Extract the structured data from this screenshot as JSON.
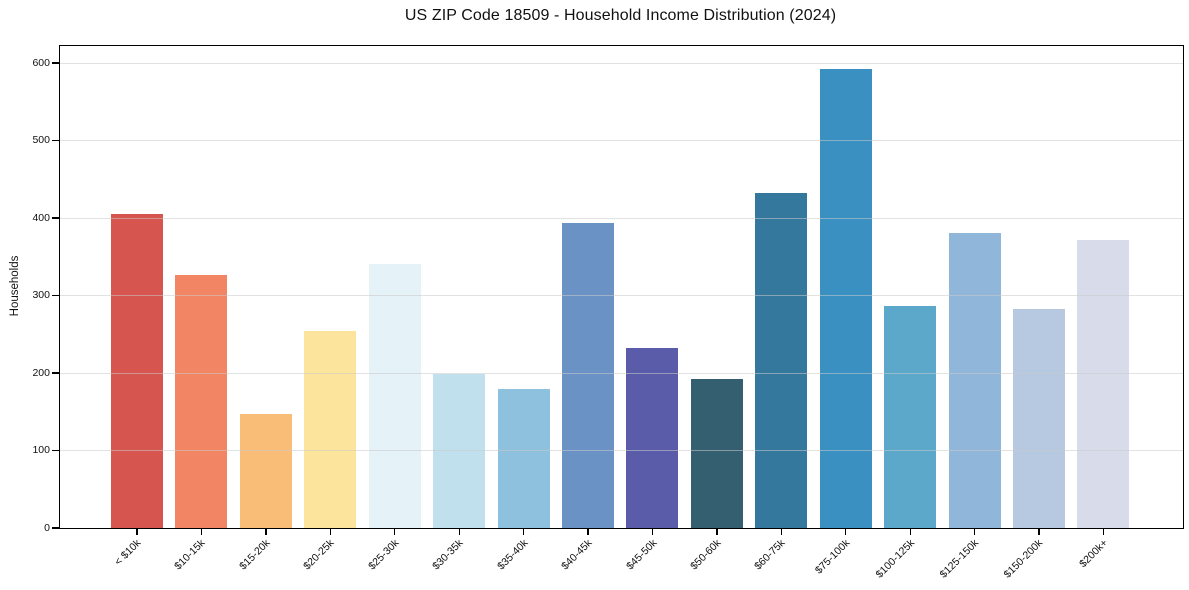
{
  "chart_data": {
    "type": "bar",
    "title": "US ZIP Code 18509 - Household Income Distribution (2024)",
    "xlabel": "",
    "ylabel": "Households",
    "categories": [
      "< $10k",
      "$10-15k",
      "$15-20k",
      "$20-25k",
      "$25-30k",
      "$30-35k",
      "$35-40k",
      "$40-45k",
      "$45-50k",
      "$50-60k",
      "$60-75k",
      "$75-100k",
      "$100-125k",
      "$125-150k",
      "$150-200k",
      "$200k+"
    ],
    "values": [
      405,
      327,
      147,
      254,
      341,
      199,
      179,
      394,
      232,
      192,
      432,
      592,
      286,
      381,
      283,
      372
    ],
    "bar_colors": [
      "#d6564f",
      "#f28563",
      "#fabd78",
      "#fde49c",
      "#e5f2f7",
      "#bfe0ec",
      "#8ec1dd",
      "#6a92c4",
      "#5a5ba9",
      "#345f70",
      "#35789d",
      "#3990c1",
      "#5ca8ca",
      "#90b7d9",
      "#b6c9e1",
      "#d8dbe9"
    ],
    "yticks": [
      0,
      100,
      200,
      300,
      400,
      500,
      600
    ],
    "ylim": [
      0,
      622
    ],
    "grid": "horizontal",
    "grid_color": "#e8e8e8",
    "legend_position": "none",
    "background": "#ffffff"
  }
}
